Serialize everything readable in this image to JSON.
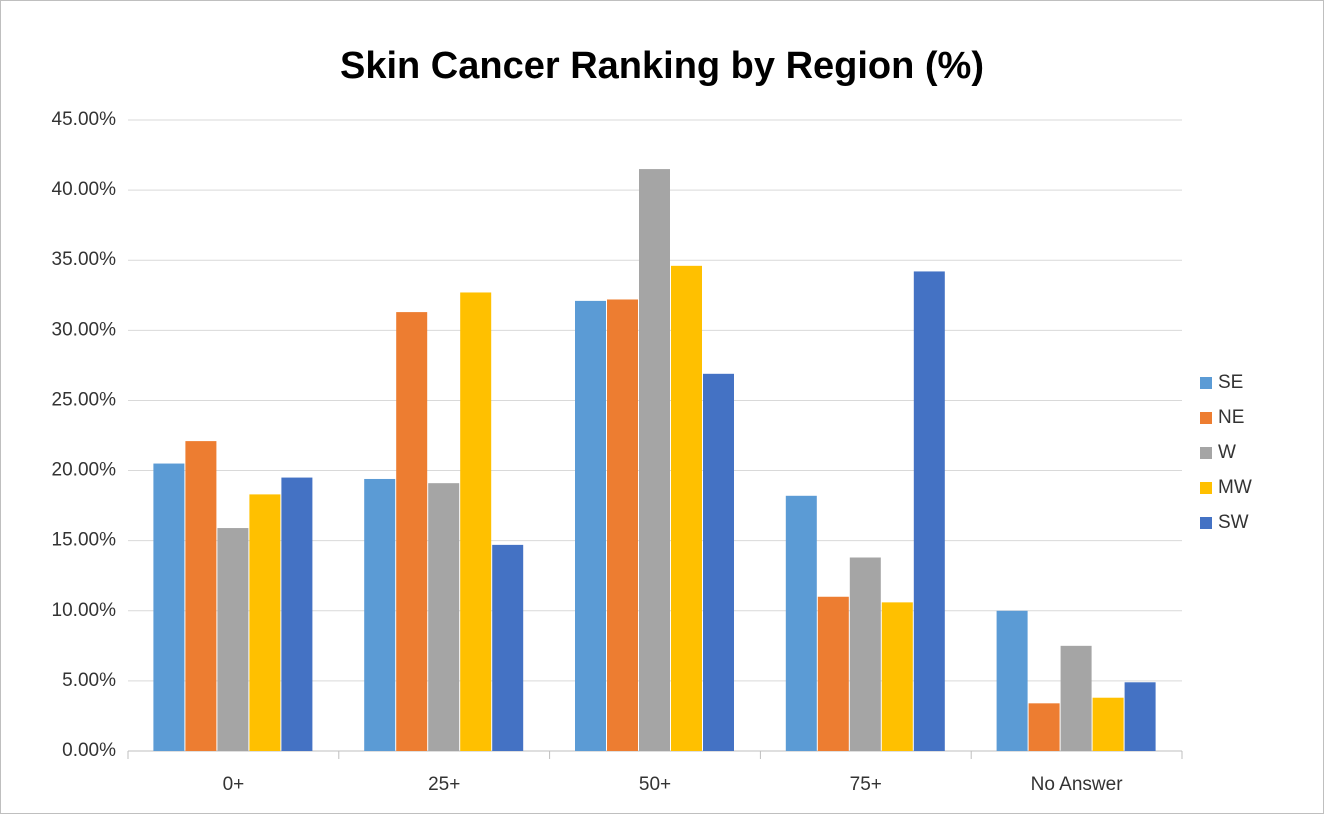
{
  "chart_data": {
    "type": "bar",
    "title": "Skin Cancer Ranking by Region (%)",
    "categories": [
      "0+",
      "25+",
      "50+",
      "75+",
      "No Answer"
    ],
    "series": [
      {
        "name": "SE",
        "color": "#5b9bd5",
        "values": [
          20.5,
          19.4,
          32.1,
          18.2,
          10.0
        ]
      },
      {
        "name": "NE",
        "color": "#ed7d31",
        "values": [
          22.1,
          31.3,
          32.2,
          11.0,
          3.4
        ]
      },
      {
        "name": "W",
        "color": "#a5a5a5",
        "values": [
          15.9,
          19.1,
          41.5,
          13.8,
          7.5
        ]
      },
      {
        "name": "MW",
        "color": "#ffc000",
        "values": [
          18.3,
          32.7,
          34.6,
          10.6,
          3.8
        ]
      },
      {
        "name": "SW",
        "color": "#4472c4",
        "values": [
          19.5,
          14.7,
          26.9,
          34.2,
          4.9
        ]
      }
    ],
    "ylim": [
      0,
      45
    ],
    "yticks": [
      {
        "value": 0,
        "label": "0.00%"
      },
      {
        "value": 5,
        "label": "5.00%"
      },
      {
        "value": 10,
        "label": "10.00%"
      },
      {
        "value": 15,
        "label": "15.00%"
      },
      {
        "value": 20,
        "label": "20.00%"
      },
      {
        "value": 25,
        "label": "25.00%"
      },
      {
        "value": 30,
        "label": "30.00%"
      },
      {
        "value": 35,
        "label": "35.00%"
      },
      {
        "value": 40,
        "label": "40.00%"
      },
      {
        "value": 45,
        "label": "45.00%"
      }
    ],
    "grid": true,
    "legend": "right"
  }
}
